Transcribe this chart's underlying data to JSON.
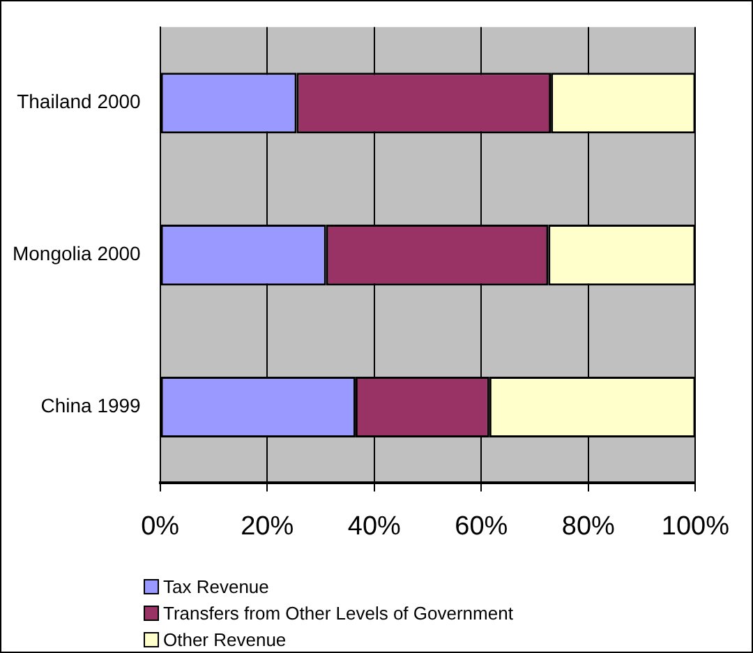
{
  "chart_data": {
    "type": "bar",
    "orientation": "horizontal",
    "stacked": true,
    "categories": [
      "Thailand 2000",
      "Mongolia 2000",
      "China 1999"
    ],
    "series": [
      {
        "name": "Tax Revenue",
        "color": "#9999ff",
        "values": [
          25.5,
          31,
          36.5
        ]
      },
      {
        "name": "Transfers from Other Levels of Government",
        "color": "#993366",
        "values": [
          47.5,
          41.5,
          25
        ]
      },
      {
        "name": "Other Revenue",
        "color": "#ffffcc",
        "values": [
          27,
          27.5,
          38.5
        ]
      }
    ],
    "xlim": [
      0,
      100
    ],
    "xticks": [
      {
        "value": 0,
        "label": "0%"
      },
      {
        "value": 20,
        "label": "20%"
      },
      {
        "value": 40,
        "label": "40%"
      },
      {
        "value": 60,
        "label": "60%"
      },
      {
        "value": 80,
        "label": "80%"
      },
      {
        "value": 100,
        "label": "100%"
      }
    ],
    "grid": "x",
    "legend": "bottom"
  }
}
